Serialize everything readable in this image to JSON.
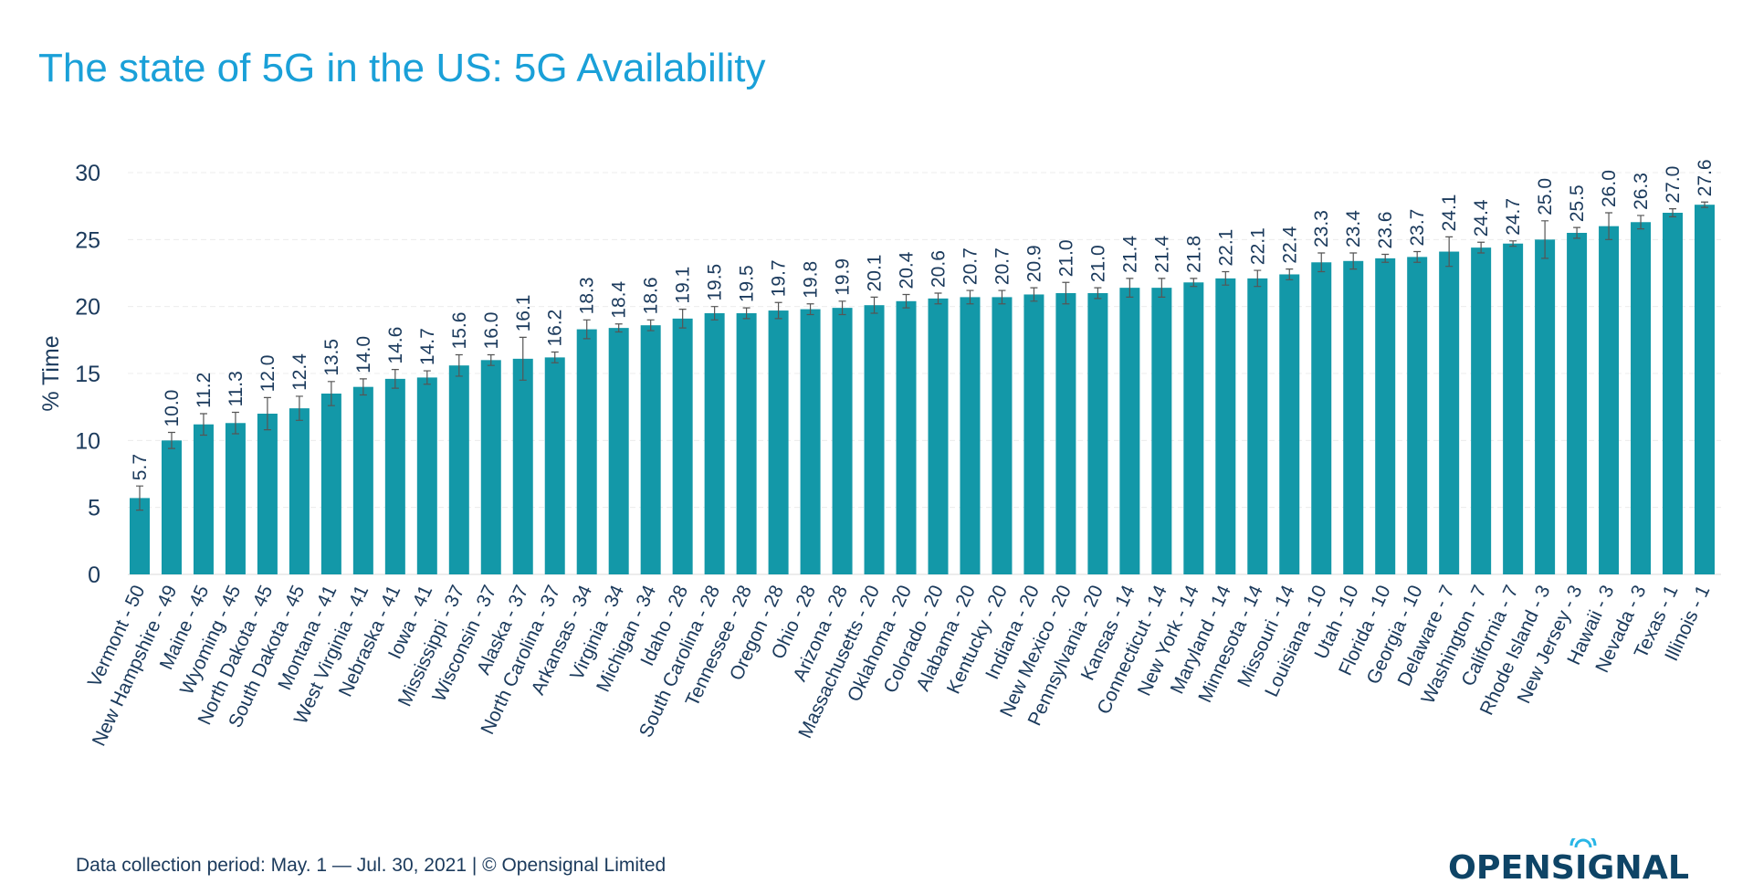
{
  "colors": {
    "title": "#1aa0d8",
    "bar": "#1398a8",
    "text": "#1b3a5c",
    "logo": "#0e4466",
    "logo_accent": "#29b6e6"
  },
  "footer": "Data collection period: May. 1 — Jul. 30, 2021 | © Opensignal Limited",
  "logo_text": "OPENSIGNAL",
  "chart_data": {
    "type": "bar",
    "title": "The state of 5G in the US: 5G Availability",
    "xlabel": "",
    "ylabel": "% Time",
    "ylim": [
      0,
      30
    ],
    "yticks": [
      0,
      5,
      10,
      15,
      20,
      25,
      30
    ],
    "grid": true,
    "categories": [
      "Vermont - 50",
      "New Hampshire - 49",
      "Maine - 45",
      "Wyoming - 45",
      "North Dakota - 45",
      "South Dakota - 45",
      "Montana - 41",
      "West Virginia - 41",
      "Nebraska - 41",
      "Iowa - 41",
      "Mississippi - 37",
      "Wisconsin - 37",
      "Alaska - 37",
      "North Carolina - 37",
      "Arkansas - 34",
      "Virginia - 34",
      "Michigan - 34",
      "Idaho - 28",
      "South Carolina - 28",
      "Tennessee - 28",
      "Oregon - 28",
      "Ohio - 28",
      "Arizona - 28",
      "Massachusetts - 20",
      "Oklahoma - 20",
      "Colorado - 20",
      "Alabama - 20",
      "Kentucky - 20",
      "Indiana - 20",
      "New Mexico - 20",
      "Pennsylvania - 20",
      "Kansas - 14",
      "Connecticut - 14",
      "New York - 14",
      "Maryland - 14",
      "Minnesota - 14",
      "Missouri - 14",
      "Louisiana - 10",
      "Utah - 10",
      "Florida - 10",
      "Georgia - 10",
      "Delaware - 7",
      "Washington - 7",
      "California - 7",
      "Rhode Island - 3",
      "New Jersey - 3",
      "Hawaii - 3",
      "Nevada - 3",
      "Texas - 1",
      "Illinois - 1"
    ],
    "values": [
      5.7,
      10.0,
      11.2,
      11.3,
      12.0,
      12.4,
      13.5,
      14.0,
      14.6,
      14.7,
      15.6,
      16.0,
      16.1,
      16.2,
      18.3,
      18.4,
      18.6,
      19.1,
      19.5,
      19.5,
      19.7,
      19.8,
      19.9,
      20.1,
      20.4,
      20.6,
      20.7,
      20.7,
      20.9,
      21.0,
      21.0,
      21.4,
      21.4,
      21.8,
      22.1,
      22.1,
      22.4,
      23.3,
      23.4,
      23.6,
      23.7,
      24.1,
      24.4,
      24.7,
      25.0,
      25.5,
      26.0,
      26.3,
      27.0,
      27.6
    ],
    "value_labels": [
      "5.7",
      "10.0",
      "11.2",
      "11.3",
      "12.0",
      "12.4",
      "13.5",
      "14.0",
      "14.6",
      "14.7",
      "15.6",
      "16.0",
      "16.1",
      "16.2",
      "18.3",
      "18.4",
      "18.6",
      "19.1",
      "19.5",
      "19.5",
      "19.7",
      "19.8",
      "19.9",
      "20.1",
      "20.4",
      "20.6",
      "20.7",
      "20.7",
      "20.9",
      "21.0",
      "21.0",
      "21.4",
      "21.4",
      "21.8",
      "22.1",
      "22.1",
      "22.4",
      "23.3",
      "23.4",
      "23.6",
      "23.7",
      "24.1",
      "24.4",
      "24.7",
      "25.0",
      "25.5",
      "26.0",
      "26.3",
      "27.0",
      "27.6"
    ],
    "error": [
      0.9,
      0.6,
      0.8,
      0.8,
      1.2,
      0.9,
      0.9,
      0.6,
      0.7,
      0.5,
      0.8,
      0.4,
      1.6,
      0.4,
      0.7,
      0.3,
      0.4,
      0.7,
      0.5,
      0.4,
      0.6,
      0.4,
      0.5,
      0.6,
      0.5,
      0.4,
      0.5,
      0.5,
      0.5,
      0.8,
      0.4,
      0.7,
      0.7,
      0.3,
      0.5,
      0.6,
      0.4,
      0.7,
      0.6,
      0.3,
      0.4,
      1.1,
      0.4,
      0.2,
      1.4,
      0.4,
      1.0,
      0.5,
      0.3,
      0.2
    ]
  }
}
